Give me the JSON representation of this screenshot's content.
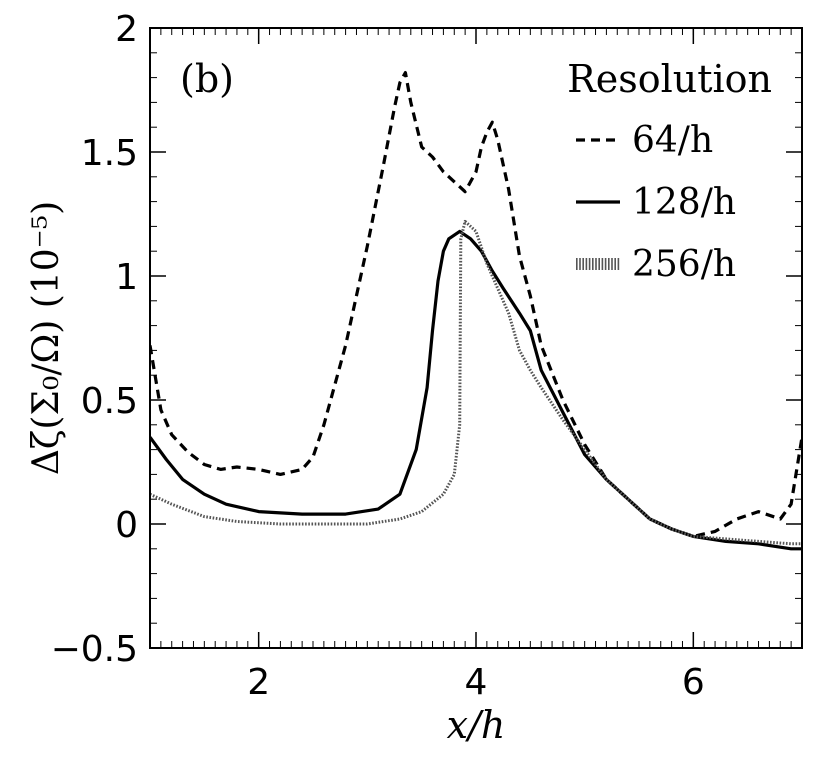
{
  "chart_data": {
    "type": "line",
    "panel_label": "(b)",
    "xlabel": "x/h",
    "ylabel": "Δζ(Σ₀/Ω) (10⁻⁵)",
    "xlim": [
      1,
      7
    ],
    "ylim": [
      -0.5,
      2
    ],
    "xticks": [
      2,
      4,
      6
    ],
    "yticks": [
      -0.5,
      0,
      0.5,
      1,
      1.5,
      2
    ],
    "ytick_labels": [
      "−0.5",
      "0",
      "0.5",
      "1",
      "1.5",
      "2"
    ],
    "legend_title": "Resolution",
    "legend_position": "top-right",
    "series": [
      {
        "name": "64/h",
        "style": "dashed",
        "points": [
          [
            1.0,
            0.72
          ],
          [
            1.1,
            0.46
          ],
          [
            1.2,
            0.36
          ],
          [
            1.35,
            0.29
          ],
          [
            1.5,
            0.24
          ],
          [
            1.65,
            0.22
          ],
          [
            1.8,
            0.23
          ],
          [
            2.0,
            0.22
          ],
          [
            2.2,
            0.2
          ],
          [
            2.4,
            0.22
          ],
          [
            2.5,
            0.27
          ],
          [
            2.6,
            0.4
          ],
          [
            2.8,
            0.72
          ],
          [
            3.0,
            1.12
          ],
          [
            3.15,
            1.45
          ],
          [
            3.25,
            1.68
          ],
          [
            3.3,
            1.78
          ],
          [
            3.35,
            1.82
          ],
          [
            3.4,
            1.7
          ],
          [
            3.5,
            1.52
          ],
          [
            3.6,
            1.48
          ],
          [
            3.7,
            1.42
          ],
          [
            3.8,
            1.38
          ],
          [
            3.9,
            1.34
          ],
          [
            4.0,
            1.42
          ],
          [
            4.05,
            1.52
          ],
          [
            4.1,
            1.58
          ],
          [
            4.15,
            1.62
          ],
          [
            4.2,
            1.55
          ],
          [
            4.3,
            1.35
          ],
          [
            4.4,
            1.08
          ],
          [
            4.5,
            0.92
          ],
          [
            4.6,
            0.72
          ],
          [
            4.8,
            0.5
          ],
          [
            5.0,
            0.32
          ],
          [
            5.2,
            0.18
          ],
          [
            5.4,
            0.1
          ],
          [
            5.6,
            0.02
          ],
          [
            5.8,
            -0.02
          ],
          [
            6.0,
            -0.05
          ],
          [
            6.2,
            -0.03
          ],
          [
            6.4,
            0.02
          ],
          [
            6.6,
            0.05
          ],
          [
            6.8,
            0.02
          ],
          [
            6.9,
            0.08
          ],
          [
            7.0,
            0.35
          ]
        ]
      },
      {
        "name": "128/h",
        "style": "solid",
        "points": [
          [
            1.0,
            0.35
          ],
          [
            1.15,
            0.26
          ],
          [
            1.3,
            0.18
          ],
          [
            1.5,
            0.12
          ],
          [
            1.7,
            0.08
          ],
          [
            2.0,
            0.05
          ],
          [
            2.4,
            0.04
          ],
          [
            2.8,
            0.04
          ],
          [
            3.1,
            0.06
          ],
          [
            3.3,
            0.12
          ],
          [
            3.45,
            0.3
          ],
          [
            3.55,
            0.55
          ],
          [
            3.6,
            0.78
          ],
          [
            3.65,
            0.98
          ],
          [
            3.7,
            1.1
          ],
          [
            3.75,
            1.15
          ],
          [
            3.85,
            1.18
          ],
          [
            3.95,
            1.15
          ],
          [
            4.05,
            1.1
          ],
          [
            4.15,
            1.02
          ],
          [
            4.25,
            0.95
          ],
          [
            4.4,
            0.85
          ],
          [
            4.5,
            0.78
          ],
          [
            4.6,
            0.62
          ],
          [
            4.8,
            0.45
          ],
          [
            5.0,
            0.28
          ],
          [
            5.2,
            0.18
          ],
          [
            5.4,
            0.1
          ],
          [
            5.6,
            0.02
          ],
          [
            5.8,
            -0.02
          ],
          [
            6.0,
            -0.05
          ],
          [
            6.3,
            -0.07
          ],
          [
            6.6,
            -0.08
          ],
          [
            6.9,
            -0.1
          ],
          [
            7.0,
            -0.1
          ]
        ]
      },
      {
        "name": "256/h",
        "style": "dotted",
        "points": [
          [
            1.0,
            0.12
          ],
          [
            1.2,
            0.08
          ],
          [
            1.5,
            0.03
          ],
          [
            1.8,
            0.01
          ],
          [
            2.2,
            0.0
          ],
          [
            2.6,
            0.0
          ],
          [
            3.0,
            0.0
          ],
          [
            3.3,
            0.02
          ],
          [
            3.5,
            0.05
          ],
          [
            3.7,
            0.12
          ],
          [
            3.8,
            0.2
          ],
          [
            3.85,
            0.4
          ],
          [
            3.86,
            1.15
          ],
          [
            3.9,
            1.22
          ],
          [
            4.0,
            1.18
          ],
          [
            4.1,
            1.05
          ],
          [
            4.2,
            0.95
          ],
          [
            4.3,
            0.85
          ],
          [
            4.4,
            0.7
          ],
          [
            4.5,
            0.62
          ],
          [
            4.6,
            0.55
          ],
          [
            4.8,
            0.42
          ],
          [
            5.0,
            0.3
          ],
          [
            5.2,
            0.18
          ],
          [
            5.4,
            0.1
          ],
          [
            5.6,
            0.02
          ],
          [
            5.8,
            -0.02
          ],
          [
            6.0,
            -0.05
          ],
          [
            6.3,
            -0.06
          ],
          [
            6.6,
            -0.07
          ],
          [
            6.9,
            -0.08
          ],
          [
            7.0,
            -0.08
          ]
        ]
      }
    ]
  }
}
